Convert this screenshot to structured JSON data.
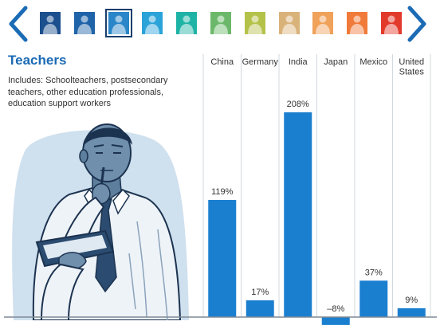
{
  "header": {
    "title": "Teachers",
    "subtitle": "Includes: Schoolteachers, postsecondary teachers, other education professionals, education support workers"
  },
  "nav": {
    "thumbnails": [
      {
        "color": "#1c4f8e"
      },
      {
        "color": "#1f63a8"
      },
      {
        "color": "#2a86c8"
      },
      {
        "color": "#2aa3d9"
      },
      {
        "color": "#1fb3a6"
      },
      {
        "color": "#6cb86a"
      },
      {
        "color": "#b5c24a"
      },
      {
        "color": "#d9b27a"
      },
      {
        "color": "#f0a15a"
      },
      {
        "color": "#f07a3a"
      },
      {
        "color": "#e23a2a"
      }
    ],
    "selected_index": 2,
    "arrow_color": "#1b6bb5"
  },
  "chart_data": {
    "type": "bar",
    "categories": [
      "China",
      "Germany",
      "India",
      "Japan",
      "Mexico",
      "United States"
    ],
    "values": [
      119,
      17,
      208,
      -8,
      37,
      9
    ],
    "data_labels": [
      "119%",
      "17%",
      "208%",
      "–8%",
      "37%",
      "9%"
    ],
    "bar_color": "#1b7fd0",
    "ylim": [
      -8,
      208
    ],
    "grid": true,
    "legend": "none"
  }
}
